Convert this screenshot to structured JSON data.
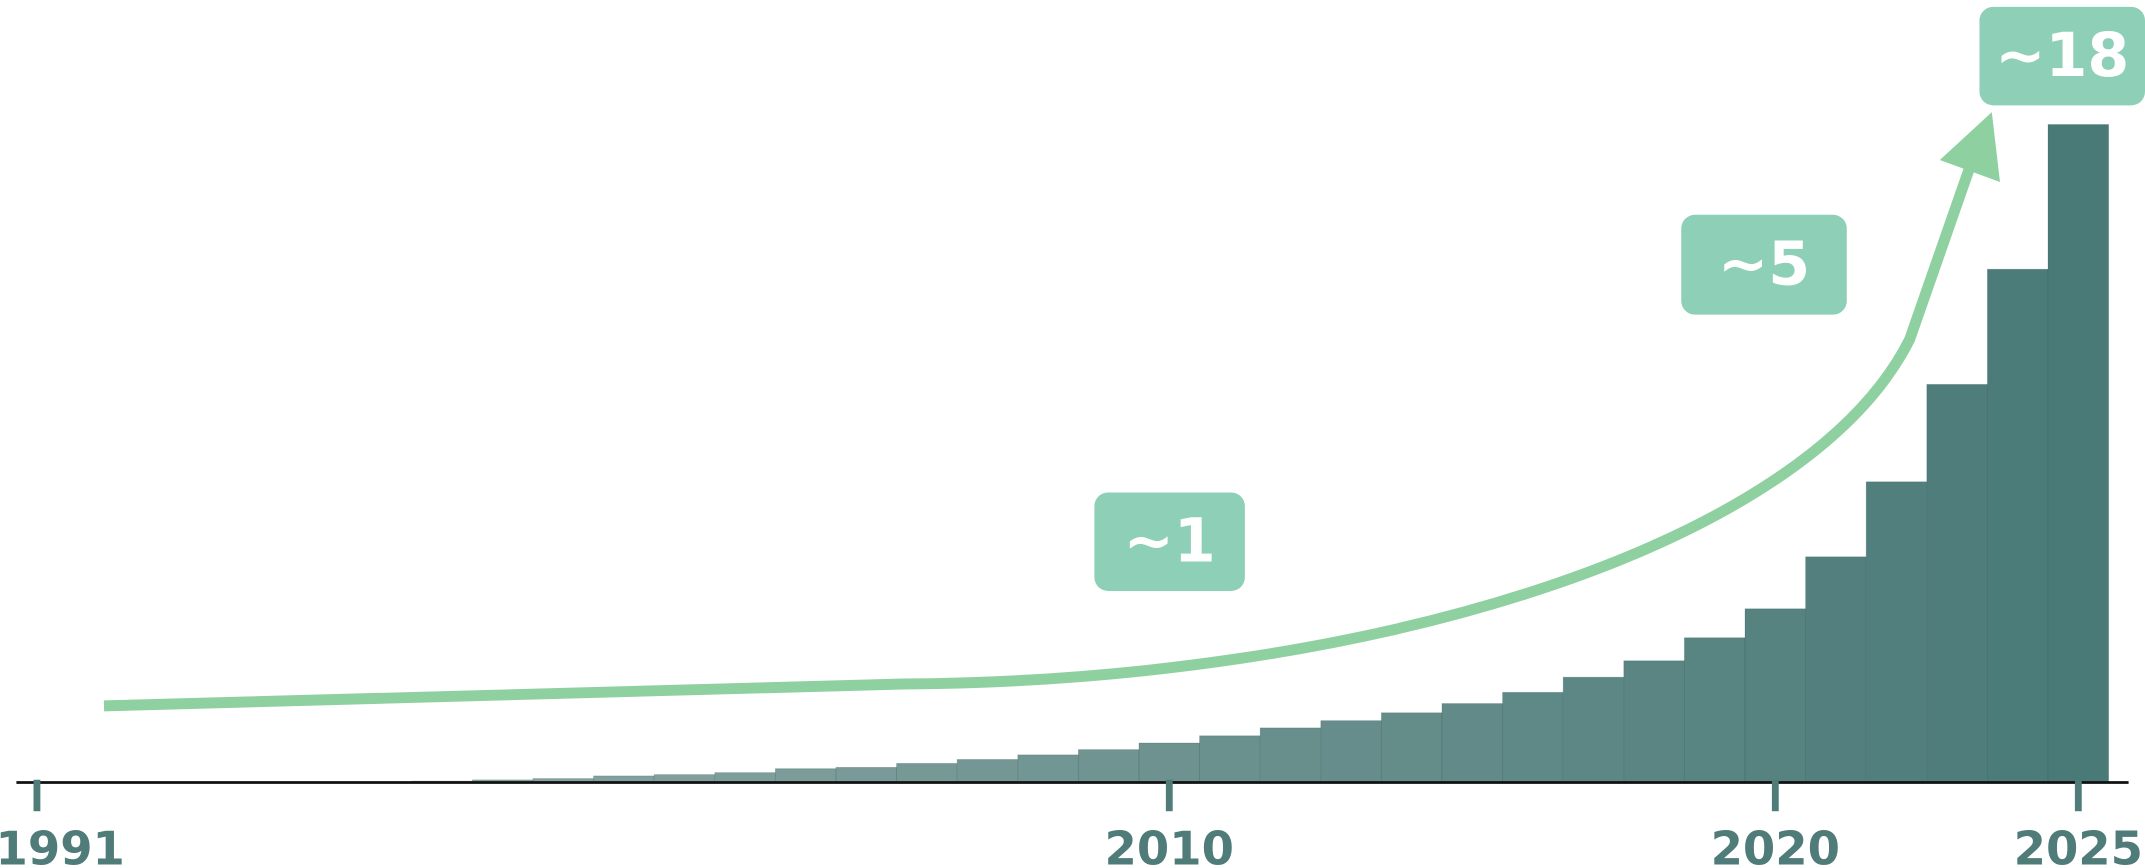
{
  "chart_data": {
    "type": "bar",
    "categories": [
      "1991",
      null,
      null,
      null,
      null,
      null,
      null,
      null,
      null,
      null,
      null,
      null,
      null,
      null,
      null,
      null,
      null,
      null,
      null,
      "2010",
      null,
      null,
      null,
      null,
      null,
      null,
      null,
      null,
      null,
      "2020",
      null,
      null,
      null,
      null,
      "2025"
    ],
    "values": [
      0,
      0,
      0,
      0,
      0,
      0,
      0,
      0.2,
      0.4,
      0.6,
      1,
      1.2,
      1.5,
      2.1,
      2.3,
      2.9,
      3.5,
      4.2,
      5,
      6,
      7.1,
      8.3,
      9.4,
      10.6,
      12,
      13.7,
      16,
      18.5,
      22,
      26.4,
      34.3,
      45.7,
      60.5,
      78,
      100
    ],
    "colors": [
      "#9ab1ae",
      "#4a7a78"
    ],
    "ylim": [
      0,
      100
    ],
    "annotations": [
      "~1",
      "~5",
      "~18"
    ]
  }
}
